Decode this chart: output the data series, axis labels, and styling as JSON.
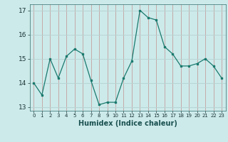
{
  "x": [
    0,
    1,
    2,
    3,
    4,
    5,
    6,
    7,
    8,
    9,
    10,
    11,
    12,
    13,
    14,
    15,
    16,
    17,
    18,
    19,
    20,
    21,
    22,
    23
  ],
  "y": [
    14.0,
    13.5,
    15.0,
    14.2,
    15.1,
    15.4,
    15.2,
    14.1,
    13.1,
    13.2,
    13.2,
    14.2,
    14.9,
    17.0,
    16.7,
    16.6,
    15.5,
    15.2,
    14.7,
    14.7,
    14.8,
    15.0,
    14.7,
    14.2
  ],
  "xlabel": "Humidex (Indice chaleur)",
  "ylim": [
    12.85,
    17.25
  ],
  "xlim": [
    -0.5,
    23.5
  ],
  "yticks": [
    13,
    14,
    15,
    16,
    17
  ],
  "xticks": [
    0,
    1,
    2,
    3,
    4,
    5,
    6,
    7,
    8,
    9,
    10,
    11,
    12,
    13,
    14,
    15,
    16,
    17,
    18,
    19,
    20,
    21,
    22,
    23
  ],
  "xtick_labels": [
    "0",
    "1",
    "2",
    "3",
    "4",
    "5",
    "6",
    "7",
    "8",
    "9",
    "10",
    "11",
    "12",
    "13",
    "14",
    "15",
    "16",
    "17",
    "18",
    "19",
    "20",
    "21",
    "22",
    "23"
  ],
  "line_color": "#1a7a6e",
  "marker_color": "#1a7a6e",
  "bg_color": "#cdeaea",
  "grid_v_color": "#c4aaaa",
  "grid_h_color": "#b8d4d4"
}
